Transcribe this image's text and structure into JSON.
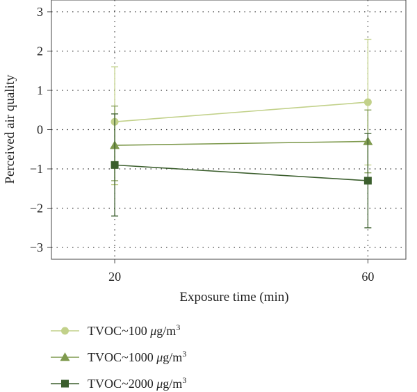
{
  "chart_data": {
    "type": "line",
    "title": "",
    "xlabel": "Exposure time (min)",
    "ylabel": "Perceived air quality",
    "x": [
      20,
      60
    ],
    "xlim": [
      10,
      66
    ],
    "ylim": [
      -3.3,
      3.3
    ],
    "xticks": [
      20,
      60
    ],
    "yticks": [
      3,
      2,
      1,
      0,
      -1,
      -2,
      -3
    ],
    "ytick_labels": [
      "3",
      "2",
      "1",
      "0",
      "−1",
      "−2",
      "−3"
    ],
    "grid": true,
    "legend_position": "bottom-left",
    "series": [
      {
        "name_prefix": "TVOC~100 ",
        "name_unit": "μg/m",
        "name_sup": "3",
        "marker": "circle",
        "color": "#c2d18a",
        "values": [
          0.2,
          0.7
        ],
        "err_low": [
          -1.4,
          -0.9
        ],
        "err_high": [
          1.6,
          2.3
        ]
      },
      {
        "name_prefix": "TVOC~1000 ",
        "name_unit": "μg/m",
        "name_sup": "3",
        "marker": "triangle",
        "color": "#7f9a4e",
        "values": [
          -0.4,
          -0.3
        ],
        "err_low": [
          -1.3,
          -1.1
        ],
        "err_high": [
          0.6,
          0.5
        ]
      },
      {
        "name_prefix": "TVOC~2000 ",
        "name_unit": "μg/m",
        "name_sup": "3",
        "marker": "square",
        "color": "#3b5e2d",
        "values": [
          -0.9,
          -1.3
        ],
        "err_low": [
          -2.2,
          -2.5
        ],
        "err_high": [
          0.4,
          -0.1
        ]
      }
    ]
  }
}
